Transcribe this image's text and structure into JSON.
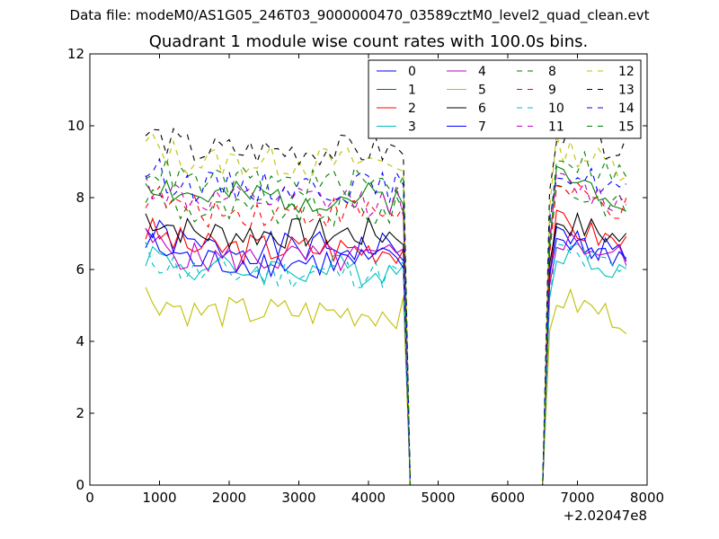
{
  "chart_data": {
    "type": "line",
    "suptitle": "Data file: modeM0/AS1G05_246T03_9000000470_03589cztM0_level2_quad_clean.evt",
    "title": "Quadrant 1 module wise count rates with 100.0s bins.",
    "xlabel": "",
    "ylabel": "",
    "x_offset_label": "+2.02047e8",
    "xlim": [
      0,
      8000
    ],
    "ylim": [
      0,
      12
    ],
    "x_ticks": [
      {
        "value": 0,
        "label": "0"
      },
      {
        "value": 1000,
        "label": "1000"
      },
      {
        "value": 2000,
        "label": "2000"
      },
      {
        "value": 3000,
        "label": "3000"
      },
      {
        "value": 4000,
        "label": "4000"
      },
      {
        "value": 5000,
        "label": "5000"
      },
      {
        "value": 6000,
        "label": "6000"
      },
      {
        "value": 7000,
        "label": "7000"
      },
      {
        "value": 8000,
        "label": "8000"
      }
    ],
    "y_ticks": [
      {
        "value": 0,
        "label": "0"
      },
      {
        "value": 2,
        "label": "2"
      },
      {
        "value": 4,
        "label": "4"
      },
      {
        "value": 6,
        "label": "6"
      },
      {
        "value": 8,
        "label": "8"
      },
      {
        "value": 10,
        "label": "10"
      },
      {
        "value": 12,
        "label": "12"
      }
    ],
    "grid": false,
    "legend_position": "top-right",
    "legend_columns": 4,
    "gap": {
      "start": 4600,
      "end": 6500
    },
    "first_x": 800,
    "bin": 100,
    "series": [
      {
        "name": "0",
        "color": "#0000ff",
        "dash": "solid",
        "level": 6.6,
        "level2": 7.0,
        "seed": 1
      },
      {
        "name": "1",
        "color": "#008000",
        "dash": "solid",
        "level": 8.0,
        "level2": 8.6,
        "seed": 2
      },
      {
        "name": "2",
        "color": "#ff0000",
        "dash": "solid",
        "level": 6.6,
        "level2": 7.3,
        "seed": 3
      },
      {
        "name": "3",
        "color": "#00bfbf",
        "dash": "solid",
        "level": 6.0,
        "level2": 6.6,
        "seed": 4
      },
      {
        "name": "4",
        "color": "#bf00bf",
        "dash": "solid",
        "level": 6.3,
        "level2": 6.9,
        "seed": 5
      },
      {
        "name": "5",
        "color": "#bfbf00",
        "dash": "solid",
        "level": 4.8,
        "level2": 5.2,
        "seed": 6
      },
      {
        "name": "6",
        "color": "#000000",
        "dash": "solid",
        "level": 7.0,
        "level2": 7.4,
        "seed": 7
      },
      {
        "name": "7",
        "color": "#0000ff",
        "dash": "solid",
        "level": 6.2,
        "level2": 6.9,
        "seed": 8
      },
      {
        "name": "8",
        "color": "#008000",
        "dash": "dashed",
        "level": 7.6,
        "level2": 8.3,
        "seed": 9
      },
      {
        "name": "9",
        "color": "#ff0000",
        "dash": "dashed",
        "level": 7.6,
        "level2": 8.2,
        "seed": 10
      },
      {
        "name": "10",
        "color": "#00bfbf",
        "dash": "dashed",
        "level": 5.9,
        "level2": 6.5,
        "seed": 11
      },
      {
        "name": "11",
        "color": "#bf00bf",
        "dash": "dashed",
        "level": 7.9,
        "level2": 8.4,
        "seed": 12
      },
      {
        "name": "12",
        "color": "#bfbf00",
        "dash": "dashed",
        "level": 9.0,
        "level2": 9.4,
        "seed": 13
      },
      {
        "name": "13",
        "color": "#000000",
        "dash": "dashed",
        "level": 9.3,
        "level2": 9.9,
        "seed": 14
      },
      {
        "name": "14",
        "color": "#0000ff",
        "dash": "dashed",
        "level": 8.3,
        "level2": 8.8,
        "seed": 15
      },
      {
        "name": "15",
        "color": "#008000",
        "dash": "dashed",
        "level": 8.4,
        "level2": 9.2,
        "seed": 16
      }
    ]
  }
}
